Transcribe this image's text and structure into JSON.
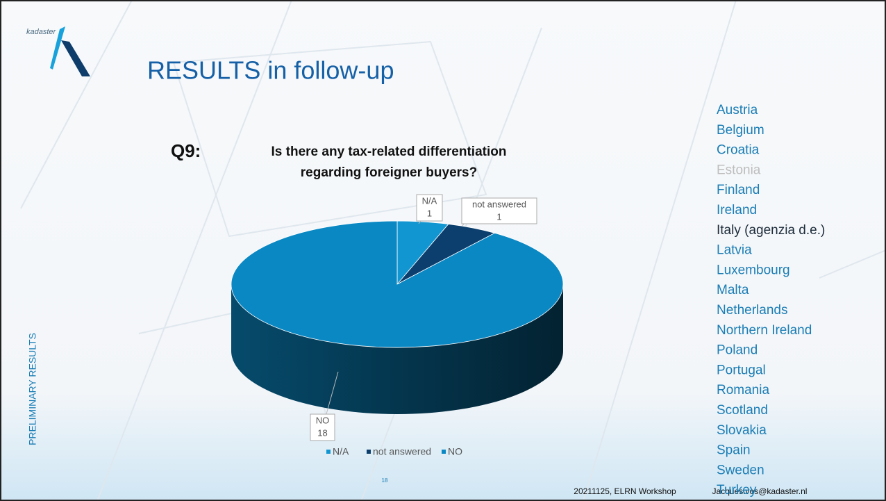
{
  "slide": {
    "logo": "kadaster",
    "title": "RESULTS in follow-up",
    "side_label": "PRELIMINARY RESULTS",
    "page": "18",
    "event": "20211125, ELRN Workshop",
    "email": "Jacques.vos@kadaster.nl"
  },
  "countries": [
    {
      "name": "Austria",
      "color": "#1a7db5"
    },
    {
      "name": "Belgium",
      "color": "#1a7db5"
    },
    {
      "name": "Croatia",
      "color": "#1a7db5"
    },
    {
      "name": "Estonia",
      "color": "#bdbdbd"
    },
    {
      "name": "Finland",
      "color": "#1a7db5"
    },
    {
      "name": "Ireland",
      "color": "#1a7db5"
    },
    {
      "name": "Italy (agenzia d.e.)",
      "color": "#1d2b3a"
    },
    {
      "name": "Latvia",
      "color": "#1a7db5"
    },
    {
      "name": "Luxembourg",
      "color": "#1a7db5"
    },
    {
      "name": "Malta",
      "color": "#1a7db5"
    },
    {
      "name": "Netherlands",
      "color": "#1a7db5"
    },
    {
      "name": "Northern Ireland",
      "color": "#1a7db5"
    },
    {
      "name": "Poland",
      "color": "#1a7db5"
    },
    {
      "name": "Portugal",
      "color": "#1a7db5"
    },
    {
      "name": "Romania",
      "color": "#1a7db5"
    },
    {
      "name": "Scotland",
      "color": "#1a7db5"
    },
    {
      "name": "Slovakia",
      "color": "#1a7db5"
    },
    {
      "name": "Spain",
      "color": "#1a7db5"
    },
    {
      "name": "Sweden",
      "color": "#1a7db5"
    },
    {
      "name": "Turkey",
      "color": "#1a7db5"
    }
  ],
  "chart_data": {
    "type": "pie",
    "prefix": "Q9:",
    "title": [
      "Is there any tax-related differentiation",
      "regarding foreigner buyers?"
    ],
    "categories": [
      "N/A",
      "not answered",
      "NO"
    ],
    "values": [
      1,
      1,
      18
    ],
    "colors": [
      "#1296d2",
      "#0c3f6e",
      "#0a88c4"
    ],
    "legend": "bottom"
  }
}
